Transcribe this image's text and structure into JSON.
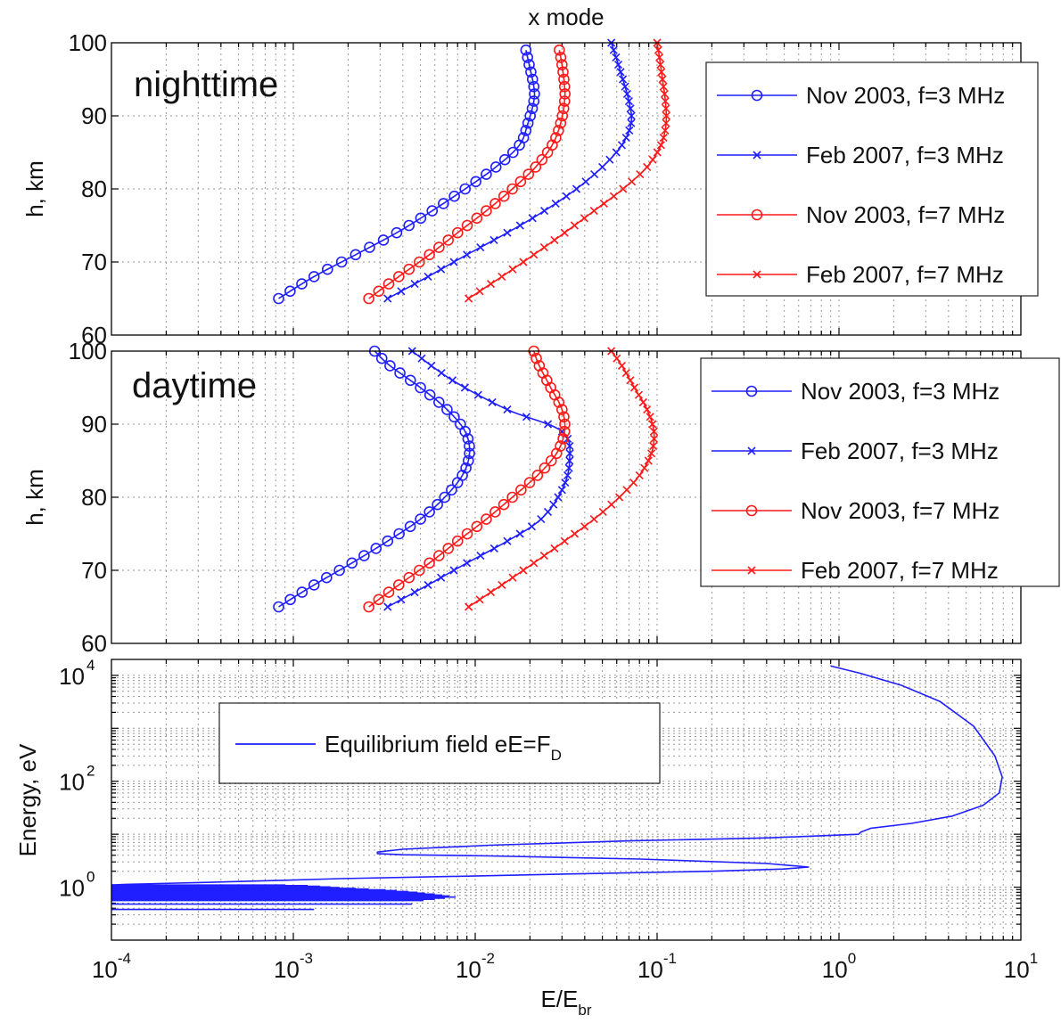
{
  "chart_data": [
    {
      "type": "line",
      "title": "x  mode",
      "panel_label": "nighttime",
      "xscale": "log",
      "xlim": [
        0.0001,
        10
      ],
      "ylim": [
        60,
        100
      ],
      "ylabel": "h, km",
      "yticks": [
        "60",
        "70",
        "80",
        "90",
        "100"
      ],
      "grid": true,
      "legend_position": "top-right",
      "series": [
        {
          "name": "Nov 2003, f=3 MHz",
          "color": "#1f1fff",
          "marker": "circle",
          "x": [
            0.00083,
            0.0013,
            0.0022,
            0.0037,
            0.0058,
            0.0088,
            0.013,
            0.0175,
            0.0195,
            0.021,
            0.021,
            0.0198,
            0.019
          ],
          "y": [
            65,
            68,
            71,
            74,
            77,
            80,
            83,
            86,
            89,
            92,
            94,
            97,
            99
          ]
        },
        {
          "name": "Feb 2007, f=3 MHz",
          "color": "#1f1fff",
          "marker": "x",
          "x": [
            0.0033,
            0.0055,
            0.009,
            0.015,
            0.024,
            0.036,
            0.05,
            0.064,
            0.072,
            0.07,
            0.063,
            0.056
          ],
          "y": [
            65,
            68,
            71,
            74,
            77,
            80,
            83,
            86,
            89,
            92,
            96,
            100
          ]
        },
        {
          "name": "Nov 2003, f=7 MHz",
          "color": "#ff1a1a",
          "marker": "circle",
          "x": [
            0.0026,
            0.0038,
            0.0056,
            0.008,
            0.0115,
            0.016,
            0.0215,
            0.0265,
            0.0295,
            0.031,
            0.031,
            0.03,
            0.029
          ],
          "y": [
            65,
            68,
            71,
            74,
            77,
            80,
            83,
            86,
            89,
            92,
            94,
            97,
            99
          ]
        },
        {
          "name": "Feb 2007, f=7 MHz",
          "color": "#ff1a1a",
          "marker": "x",
          "x": [
            0.0092,
            0.014,
            0.021,
            0.031,
            0.045,
            0.065,
            0.088,
            0.105,
            0.112,
            0.111,
            0.107,
            0.103,
            0.1
          ],
          "y": [
            65,
            68,
            71,
            74,
            77,
            80,
            83,
            86,
            89,
            92,
            95,
            98,
            100
          ]
        }
      ]
    },
    {
      "type": "line",
      "panel_label": "daytime",
      "xscale": "log",
      "xlim": [
        0.0001,
        10
      ],
      "ylim": [
        60,
        100
      ],
      "ylabel": "h, km",
      "yticks": [
        "60",
        "70",
        "80",
        "90",
        "100"
      ],
      "grid": true,
      "legend_position": "top-right",
      "series": [
        {
          "name": "Nov 2003, f=3 MHz",
          "color": "#1f1fff",
          "marker": "circle",
          "x": [
            0.00083,
            0.0013,
            0.0021,
            0.0033,
            0.005,
            0.0068,
            0.0085,
            0.0093,
            0.0088,
            0.007,
            0.005,
            0.0034,
            0.0028
          ],
          "y": [
            65,
            68,
            71,
            74,
            77,
            80,
            83,
            86,
            89,
            92,
            95,
            98,
            100
          ]
        },
        {
          "name": "Feb 2007, f=3 MHz",
          "color": "#1f1fff",
          "marker": "x",
          "x": [
            0.0033,
            0.0055,
            0.009,
            0.015,
            0.023,
            0.03,
            0.033,
            0.03,
            0.015,
            0.0075,
            0.0045
          ],
          "y": [
            65,
            68,
            71,
            74,
            77,
            81,
            85,
            89,
            92,
            96,
            100
          ]
        },
        {
          "name": "Nov 2003, f=7 MHz",
          "color": "#ff1a1a",
          "marker": "circle",
          "x": [
            0.0026,
            0.0038,
            0.0056,
            0.008,
            0.0115,
            0.016,
            0.022,
            0.028,
            0.031,
            0.03,
            0.026,
            0.0225,
            0.021
          ],
          "y": [
            65,
            68,
            71,
            74,
            77,
            80,
            83,
            86,
            89,
            92,
            95,
            98,
            100
          ]
        },
        {
          "name": "Feb 2007, f=7 MHz",
          "color": "#ff1a1a",
          "marker": "x",
          "x": [
            0.0092,
            0.014,
            0.021,
            0.031,
            0.045,
            0.062,
            0.08,
            0.093,
            0.096,
            0.088,
            0.075,
            0.064,
            0.056
          ],
          "y": [
            65,
            68,
            71,
            74,
            77,
            80,
            83,
            86,
            89,
            92,
            95,
            98,
            100
          ]
        }
      ]
    },
    {
      "type": "line",
      "xscale": "log",
      "yscale": "log",
      "xlim": [
        0.0001,
        10
      ],
      "ylim": [
        0.1,
        20000
      ],
      "xlabel": "E/E",
      "xlabel_subscript": "br",
      "ylabel": "Energy, eV",
      "xticks": [
        {
          "base": "10",
          "exp": "-4"
        },
        {
          "base": "10",
          "exp": "-3"
        },
        {
          "base": "10",
          "exp": "-2"
        },
        {
          "base": "10",
          "exp": "-1"
        },
        {
          "base": "10",
          "exp": "0"
        },
        {
          "base": "10",
          "exp": "1"
        }
      ],
      "yticks": [
        {
          "base": "10",
          "exp": "0"
        },
        {
          "base": "10",
          "exp": "2"
        },
        {
          "base": "10",
          "exp": "4"
        }
      ],
      "grid": true,
      "legend_position": "upper-left",
      "series": [
        {
          "name": "Equilibrium field eE=F",
          "name_subscript": "D",
          "color": "#1f1fff",
          "x": [
            0.9,
            1.3,
            2.2,
            3.6,
            5.5,
            7.2,
            7.9,
            7.6,
            6.2,
            4.2,
            2.5,
            1.5,
            1.32,
            1.28,
            0.4,
            0.07,
            0.012,
            0.004,
            0.0029,
            0.0029,
            0.004,
            0.012,
            0.08,
            0.4,
            0.68,
            0.5,
            0.2,
            0.04,
            0.008,
            0.0018,
            0.0009,
            0.0005,
            0.0003,
            0.00018,
            0.00012,
            0.0001
          ],
          "y": [
            15000,
            11000,
            6500,
            3200,
            1100,
            300,
            120,
            60,
            35,
            22,
            16,
            13,
            11,
            10,
            8.5,
            7.5,
            6.2,
            5.2,
            4.6,
            4.3,
            4.1,
            3.9,
            3.4,
            2.8,
            2.4,
            2.2,
            2.0,
            1.8,
            1.6,
            1.45,
            1.35,
            1.28,
            1.22,
            1.17,
            1.13,
            1.1
          ]
        },
        {
          "name": "",
          "color": "#1f1fff",
          "role": "comb",
          "x": [
            0.0009,
            0.0012,
            0.0014,
            0.0016,
            0.0018,
            0.0022,
            0.0026,
            0.0032,
            0.0037,
            0.0043,
            0.0048,
            0.0053,
            0.006,
            0.0066,
            0.0072,
            0.0078,
            0.0068,
            0.006,
            0.0052,
            0.0045,
            0.0013
          ],
          "y": [
            1.1,
            1.07,
            1.04,
            1.01,
            0.98,
            0.95,
            0.92,
            0.89,
            0.86,
            0.83,
            0.8,
            0.77,
            0.74,
            0.71,
            0.68,
            0.65,
            0.62,
            0.59,
            0.56,
            0.48,
            0.38
          ]
        }
      ]
    }
  ]
}
